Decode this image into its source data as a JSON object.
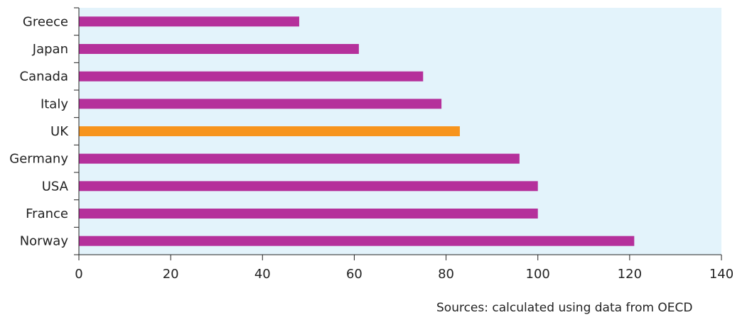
{
  "chart_data": {
    "type": "bar",
    "orientation": "horizontal",
    "categories": [
      "Greece",
      "Japan",
      "Canada",
      "Italy",
      "UK",
      "Germany",
      "USA",
      "France",
      "Norway"
    ],
    "values": [
      48,
      61,
      75,
      79,
      83,
      96,
      100,
      100,
      121
    ],
    "highlight_category": "UK",
    "xlim": [
      0,
      140
    ],
    "x_ticks": [
      0,
      20,
      40,
      60,
      80,
      100,
      120,
      140
    ],
    "grid": false,
    "colors": {
      "bar": "#b5309b",
      "highlight": "#f7941d",
      "plot_background": "#e3f3fb",
      "axis": "#222222"
    },
    "source": "Sources: calculated using data from OECD"
  }
}
